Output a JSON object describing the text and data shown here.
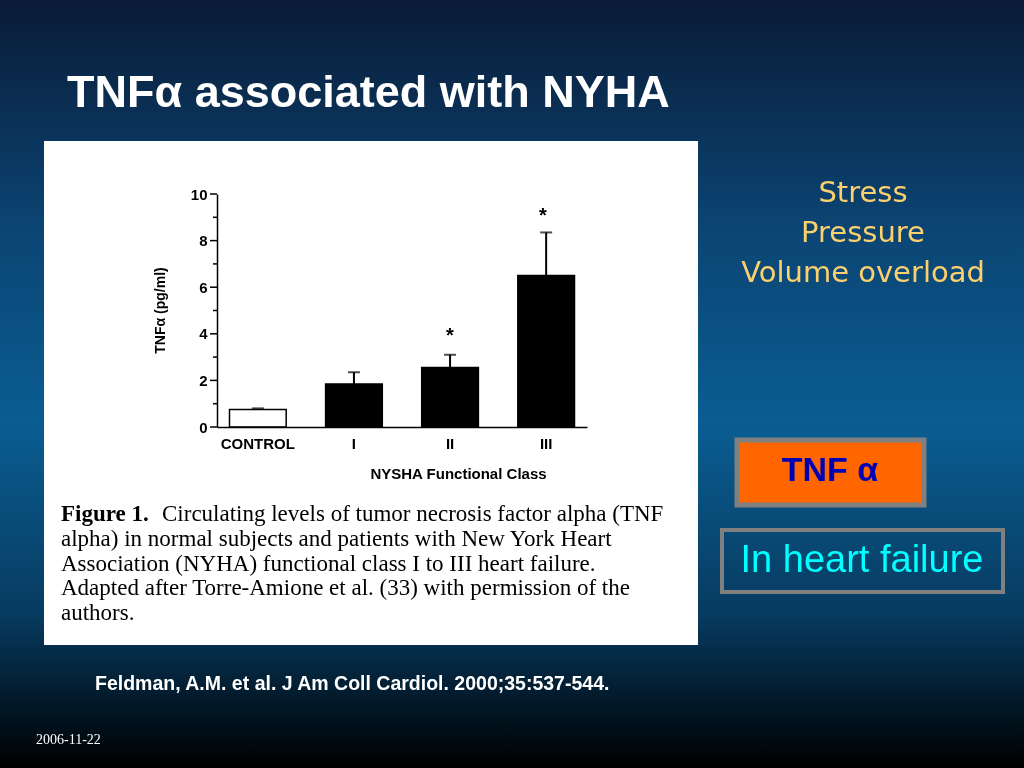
{
  "chart_data": {
    "type": "bar",
    "title": "TNFα associated with NYHA",
    "xlabel": "NYSHA Functional Class",
    "ylabel": "TNFα (pg/ml)",
    "categories": [
      "CONTROL",
      "I",
      "II",
      "III"
    ],
    "values": [
      0.75,
      1.85,
      2.55,
      6.5
    ],
    "colors": [
      "#ffffff",
      "#000000",
      "#000000",
      "#000000"
    ],
    "errors": [
      [
        0.75,
        0.8
      ],
      [
        1.85,
        2.35
      ],
      [
        2.55,
        3.1
      ],
      [
        6.5,
        8.35
      ]
    ],
    "ylim": [
      0,
      10
    ],
    "yticks": [
      0,
      {
        "value": 1,
        "label": null
      },
      2,
      {
        "value": 3,
        "label": null
      },
      4,
      {
        "value": 5,
        "label": null
      },
      6,
      {
        "value": 7,
        "label": null
      },
      8,
      {
        "value": 9,
        "label": null
      },
      10
    ],
    "annotations": [
      "Figure 1.",
      "Circulating levels of tumor necrosis factor alpha (TNF",
      "alpha) in normal subjects and patients with New York Heart\nAssociation (NYHA) functional class I to III heart failure.\nAdapted after Torre-Amione et al. (33) with permission of the\nauthors.",
      "*",
      "*",
      "Stress\nPressure\nVolume overload",
      "TNF α",
      "In heart failure",
      "Feldman, A.M. et al. J Am Coll Cardiol. 2000;35:537-544.",
      "2006-11-22"
    ]
  }
}
